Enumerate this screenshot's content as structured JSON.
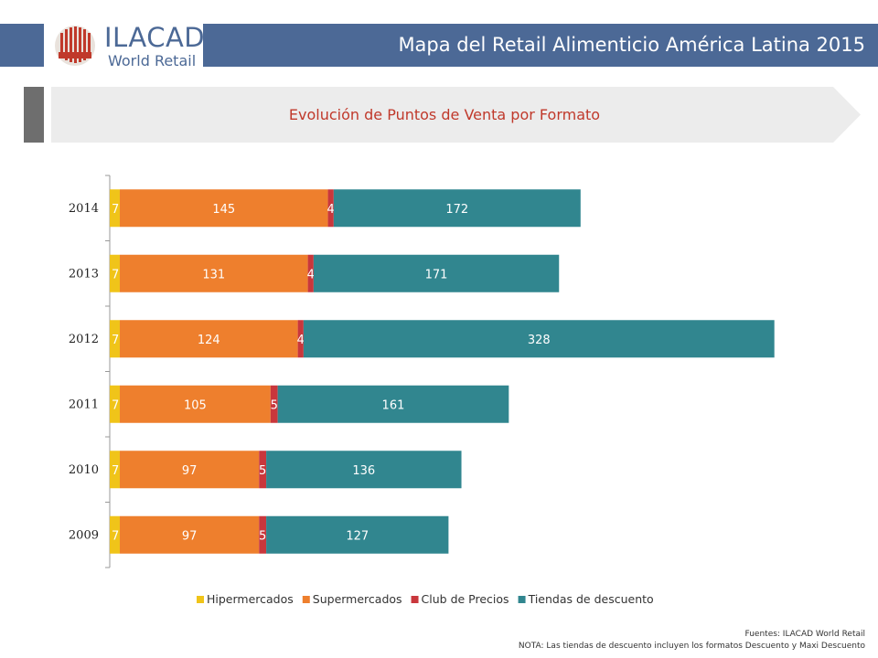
{
  "header": {
    "title": "Mapa del Retail Alimenticio América Latina 2015",
    "brand_color": "#4c6996"
  },
  "logo": {
    "name": "ILACAD",
    "subtitle": "World Retail",
    "icon": "globe-icon"
  },
  "section": {
    "title": "Evolución de Puntos de Venta por Formato"
  },
  "chart_data": {
    "type": "bar",
    "orientation": "horizontal",
    "stacked": true,
    "categories": [
      "2014",
      "2013",
      "2012",
      "2011",
      "2010",
      "2009"
    ],
    "series": [
      {
        "name": "Hipermercados",
        "color": "#f0c419",
        "values": [
          7,
          7,
          7,
          7,
          7,
          7
        ]
      },
      {
        "name": "Supermercados",
        "color": "#ee7f2d",
        "values": [
          145,
          131,
          124,
          105,
          97,
          97
        ]
      },
      {
        "name": "Club de Precios",
        "color": "#c9373c",
        "values": [
          4,
          4,
          4,
          5,
          5,
          5
        ]
      },
      {
        "name": "Tiendas de descuento",
        "color": "#31868f",
        "values": [
          172,
          171,
          328,
          161,
          136,
          127
        ]
      }
    ],
    "legend_position": "bottom",
    "grid": false
  },
  "footer": {
    "source": "Fuentes: ILACAD World Retail",
    "note": "NOTA: Las tiendas de descuento incluyen los formatos Descuento y Maxi Descuento"
  }
}
